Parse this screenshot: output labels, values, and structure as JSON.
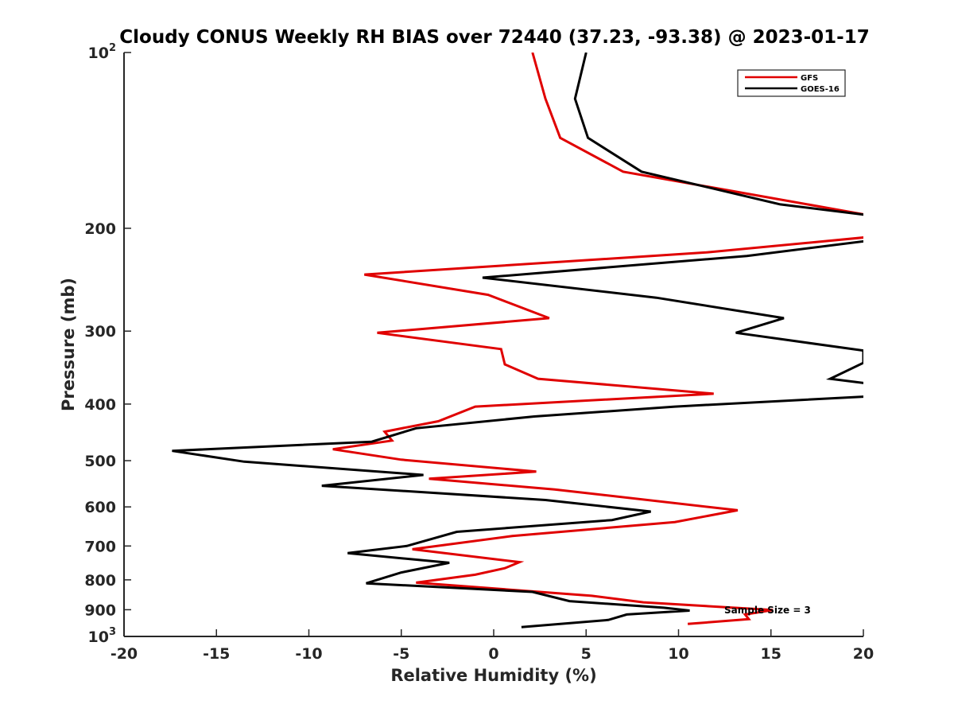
{
  "chart_data": {
    "type": "line",
    "title": "Cloudy CONUS Weekly RH BIAS over 72440 (37.23, -93.38) @ 2023-01-17",
    "xlabel": "Relative Humidity (%)",
    "ylabel": "Pressure (mb)",
    "xlim": [
      -20,
      20
    ],
    "ylim": [
      100,
      1000
    ],
    "y_scale": "log",
    "y_reversed": true,
    "grid": false,
    "legend_position": "top-right",
    "xticks": [
      {
        "value": -20,
        "label": "-20"
      },
      {
        "value": -15,
        "label": "-15"
      },
      {
        "value": -10,
        "label": "-10"
      },
      {
        "value": -5,
        "label": "-5"
      },
      {
        "value": 0,
        "label": "0"
      },
      {
        "value": 5,
        "label": "5"
      },
      {
        "value": 10,
        "label": "10"
      },
      {
        "value": 15,
        "label": "15"
      },
      {
        "value": 20,
        "label": "20"
      }
    ],
    "yticks": [
      {
        "value": 100,
        "label": "10",
        "exp": "2"
      },
      {
        "value": 200,
        "label": "200"
      },
      {
        "value": 300,
        "label": "300"
      },
      {
        "value": 400,
        "label": "400"
      },
      {
        "value": 500,
        "label": "500"
      },
      {
        "value": 600,
        "label": "600"
      },
      {
        "value": 700,
        "label": "700"
      },
      {
        "value": 800,
        "label": "800"
      },
      {
        "value": 900,
        "label": "900"
      },
      {
        "value": 1000,
        "label": "10",
        "exp": "3"
      }
    ],
    "annotation": "Sample Size = 3",
    "series": [
      {
        "name": "GFS",
        "color": "#e00000",
        "x": [
          2.1,
          2.8,
          3.6,
          7.0,
          20.3,
          20.3,
          11.5,
          -7.0,
          -0.3,
          3.0,
          -6.3,
          0.4,
          0.6,
          2.4,
          11.9,
          -1.0,
          -3.0,
          -5.9,
          -5.5,
          -8.7,
          -5.0,
          2.3,
          -3.5,
          3.3,
          13.2,
          9.8,
          1.0,
          -4.4,
          1.4,
          0.6,
          -1.0,
          -4.2,
          5.3,
          8.1,
          15.1,
          13.6,
          13.8,
          10.5
        ],
        "y": [
          100,
          120,
          140,
          160,
          190,
          207,
          220,
          240,
          260,
          285,
          302,
          322,
          342,
          362,
          384,
          404,
          428,
          446,
          462,
          478,
          498,
          522,
          537,
          560,
          608,
          637,
          673,
          709,
          746,
          764,
          784,
          809,
          852,
          874,
          901,
          917,
          934,
          952
        ]
      },
      {
        "name": "GOES-16",
        "color": "#000000",
        "x": [
          5.0,
          4.4,
          5.1,
          8.0,
          15.5,
          20.3,
          20.3,
          13.7,
          -0.6,
          8.8,
          15.7,
          13.1,
          20.0,
          20.0,
          18.2,
          20.3,
          20.3,
          9.8,
          2.2,
          -4.2,
          -6.6,
          -17.4,
          -13.5,
          -3.8,
          -9.3,
          2.8,
          8.5,
          6.4,
          -2.0,
          -4.7,
          -7.9,
          -2.4,
          -5.0,
          -6.9,
          2.1,
          4.1,
          9.2,
          10.6,
          7.2,
          6.2,
          1.5
        ],
        "y": [
          100,
          120,
          140,
          160,
          182,
          190,
          210,
          223,
          243,
          263,
          285,
          302,
          324,
          340,
          362,
          369,
          388,
          404,
          420,
          440,
          464,
          481,
          502,
          529,
          552,
          584,
          611,
          632,
          662,
          700,
          720,
          748,
          777,
          811,
          839,
          870,
          893,
          903,
          917,
          937,
          964
        ]
      }
    ]
  }
}
